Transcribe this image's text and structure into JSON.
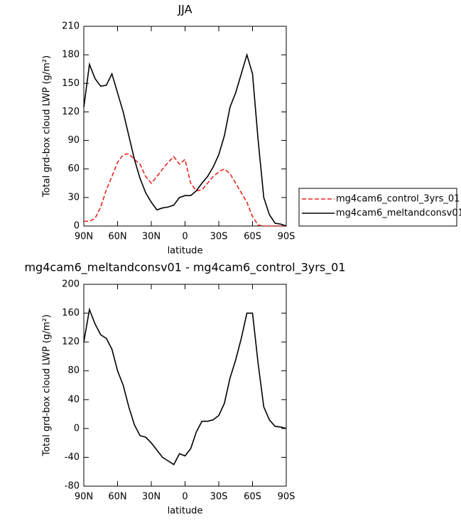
{
  "chart_data": [
    {
      "type": "line",
      "title": "JJA",
      "xlabel": "latitude",
      "ylabel": "Total grd-box cloud LWP (g/m²)",
      "x": [
        90,
        85,
        80,
        75,
        70,
        65,
        60,
        55,
        50,
        45,
        40,
        35,
        30,
        25,
        20,
        15,
        10,
        5,
        0,
        -5,
        -10,
        -15,
        -20,
        -25,
        -30,
        -35,
        -40,
        -45,
        -50,
        -55,
        -60,
        -65,
        -70,
        -75,
        -80,
        -85,
        -90
      ],
      "series": [
        {
          "name": "mg4cam6_control_3yrs_01",
          "color": "#e8261e",
          "line_style": "dashed",
          "values": [
            5,
            5,
            8,
            20,
            38,
            52,
            67,
            75,
            76,
            70,
            65,
            52,
            45,
            52,
            60,
            67,
            73,
            65,
            70,
            45,
            37,
            38,
            45,
            52,
            57,
            60,
            55,
            45,
            35,
            25,
            10,
            1,
            0,
            0,
            0,
            0,
            0
          ]
        },
        {
          "name": "mg4cam6_meltandconsv01",
          "color": "#000000",
          "line_style": "solid",
          "values": [
            125,
            170,
            155,
            147,
            148,
            160,
            140,
            120,
            95,
            70,
            50,
            35,
            25,
            17,
            19,
            20,
            22,
            30,
            32,
            32,
            37,
            45,
            52,
            62,
            75,
            95,
            125,
            140,
            160,
            180,
            160,
            90,
            30,
            12,
            3,
            2,
            0
          ]
        }
      ],
      "xlim": [
        90,
        -90
      ],
      "xticks": [
        {
          "value": 90,
          "label": "90N"
        },
        {
          "value": 60,
          "label": "60N"
        },
        {
          "value": 30,
          "label": "30N"
        },
        0,
        {
          "value": -30,
          "label": "30S"
        },
        {
          "value": -60,
          "label": "60S"
        },
        {
          "value": -90,
          "label": "90S"
        }
      ],
      "ylim": [
        0,
        210
      ],
      "yticks": [
        0,
        30,
        60,
        90,
        120,
        150,
        180,
        210
      ],
      "legend": "right"
    },
    {
      "type": "line",
      "title": "mg4cam6_meltandconsv01 - mg4cam6_control_3yrs_01",
      "xlabel": "latitude",
      "ylabel": "Total grd-box cloud LWP (g/m²)",
      "x": [
        90,
        85,
        80,
        75,
        70,
        65,
        60,
        55,
        50,
        45,
        40,
        35,
        30,
        25,
        20,
        15,
        10,
        5,
        0,
        -5,
        -10,
        -15,
        -20,
        -25,
        -30,
        -35,
        -40,
        -45,
        -50,
        -55,
        -60,
        -65,
        -70,
        -75,
        -80,
        -85,
        -90
      ],
      "series": [
        {
          "color": "#000000",
          "line_style": "solid",
          "values": [
            120,
            165,
            145,
            130,
            125,
            110,
            80,
            60,
            30,
            5,
            -10,
            -12,
            -20,
            -30,
            -40,
            -45,
            -50,
            -35,
            -38,
            -28,
            -5,
            10,
            10,
            12,
            18,
            35,
            70,
            95,
            125,
            160,
            160,
            90,
            30,
            12,
            3,
            2,
            0
          ]
        }
      ],
      "xlim": [
        90,
        -90
      ],
      "xticks": [
        {
          "value": 90,
          "label": "90N"
        },
        {
          "value": 60,
          "label": "60N"
        },
        {
          "value": 30,
          "label": "30N"
        },
        0,
        {
          "value": -30,
          "label": "30S"
        },
        {
          "value": -60,
          "label": "60S"
        },
        {
          "value": -90,
          "label": "90S"
        }
      ],
      "ylim": [
        -80,
        200
      ],
      "yticks": [
        -80,
        -40,
        0,
        40,
        80,
        120,
        160,
        200
      ]
    }
  ]
}
